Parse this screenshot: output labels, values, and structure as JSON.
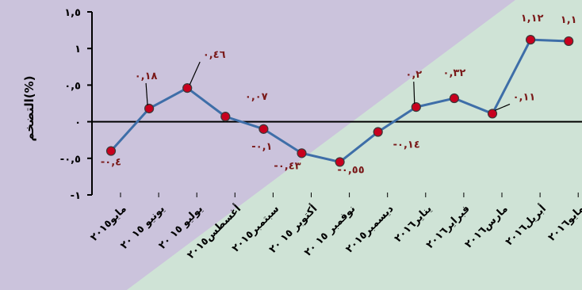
{
  "chart_data": {
    "type": "line",
    "ylabel": "التضخم(%)",
    "ylim": [
      -1,
      1.5
    ],
    "yticks": [
      {
        "value": 1.5,
        "label": "١,٥"
      },
      {
        "value": 1,
        "label": "١"
      },
      {
        "value": 0.5,
        "label": "٠,٥"
      },
      {
        "value": 0,
        "label": "٠"
      },
      {
        "value": -0.5,
        "label": "-٠,٥"
      },
      {
        "value": -1,
        "label": "-١"
      }
    ],
    "categories": [
      "مايو٢٠١٥",
      "يونيو ١٥ ٢٠",
      "يوليو ١٥ ٢٠",
      "أغسطس٢٠١٥",
      "سبتمبر٢٠١٥",
      "أكتوبر ١٥ ٢٠",
      "نوفمبر ١٥ ٢٠",
      "ديسمبر٢٠١٥",
      "يناير٢٠١٦",
      "فبراير٢٠١٦",
      "مارس٢٠١٦",
      "أبريل٢٠١٦",
      "مايو٢٠١٦"
    ],
    "values": [
      -0.4,
      0.18,
      0.46,
      0.07,
      -0.1,
      -0.43,
      -0.55,
      -0.14,
      0.2,
      0.32,
      0.11,
      1.12,
      1.1
    ],
    "data_labels": [
      "-٠,٤",
      "٠,١٨",
      "٠,٤٦",
      "٠,٠٧",
      "-٠,١",
      "-٠,٤٣",
      "-٠,٥٥",
      "-٠,١٤",
      "٠,٢",
      "٠,٣٢",
      "٠,١١",
      "١,١٢",
      "١,١"
    ],
    "grid": false,
    "colors": {
      "line": "#3e6ea8",
      "marker": "#c8001e",
      "label": "#7a1a1a",
      "bg_purple": "#cbc3dc",
      "bg_green": "#cfe3d6"
    }
  }
}
